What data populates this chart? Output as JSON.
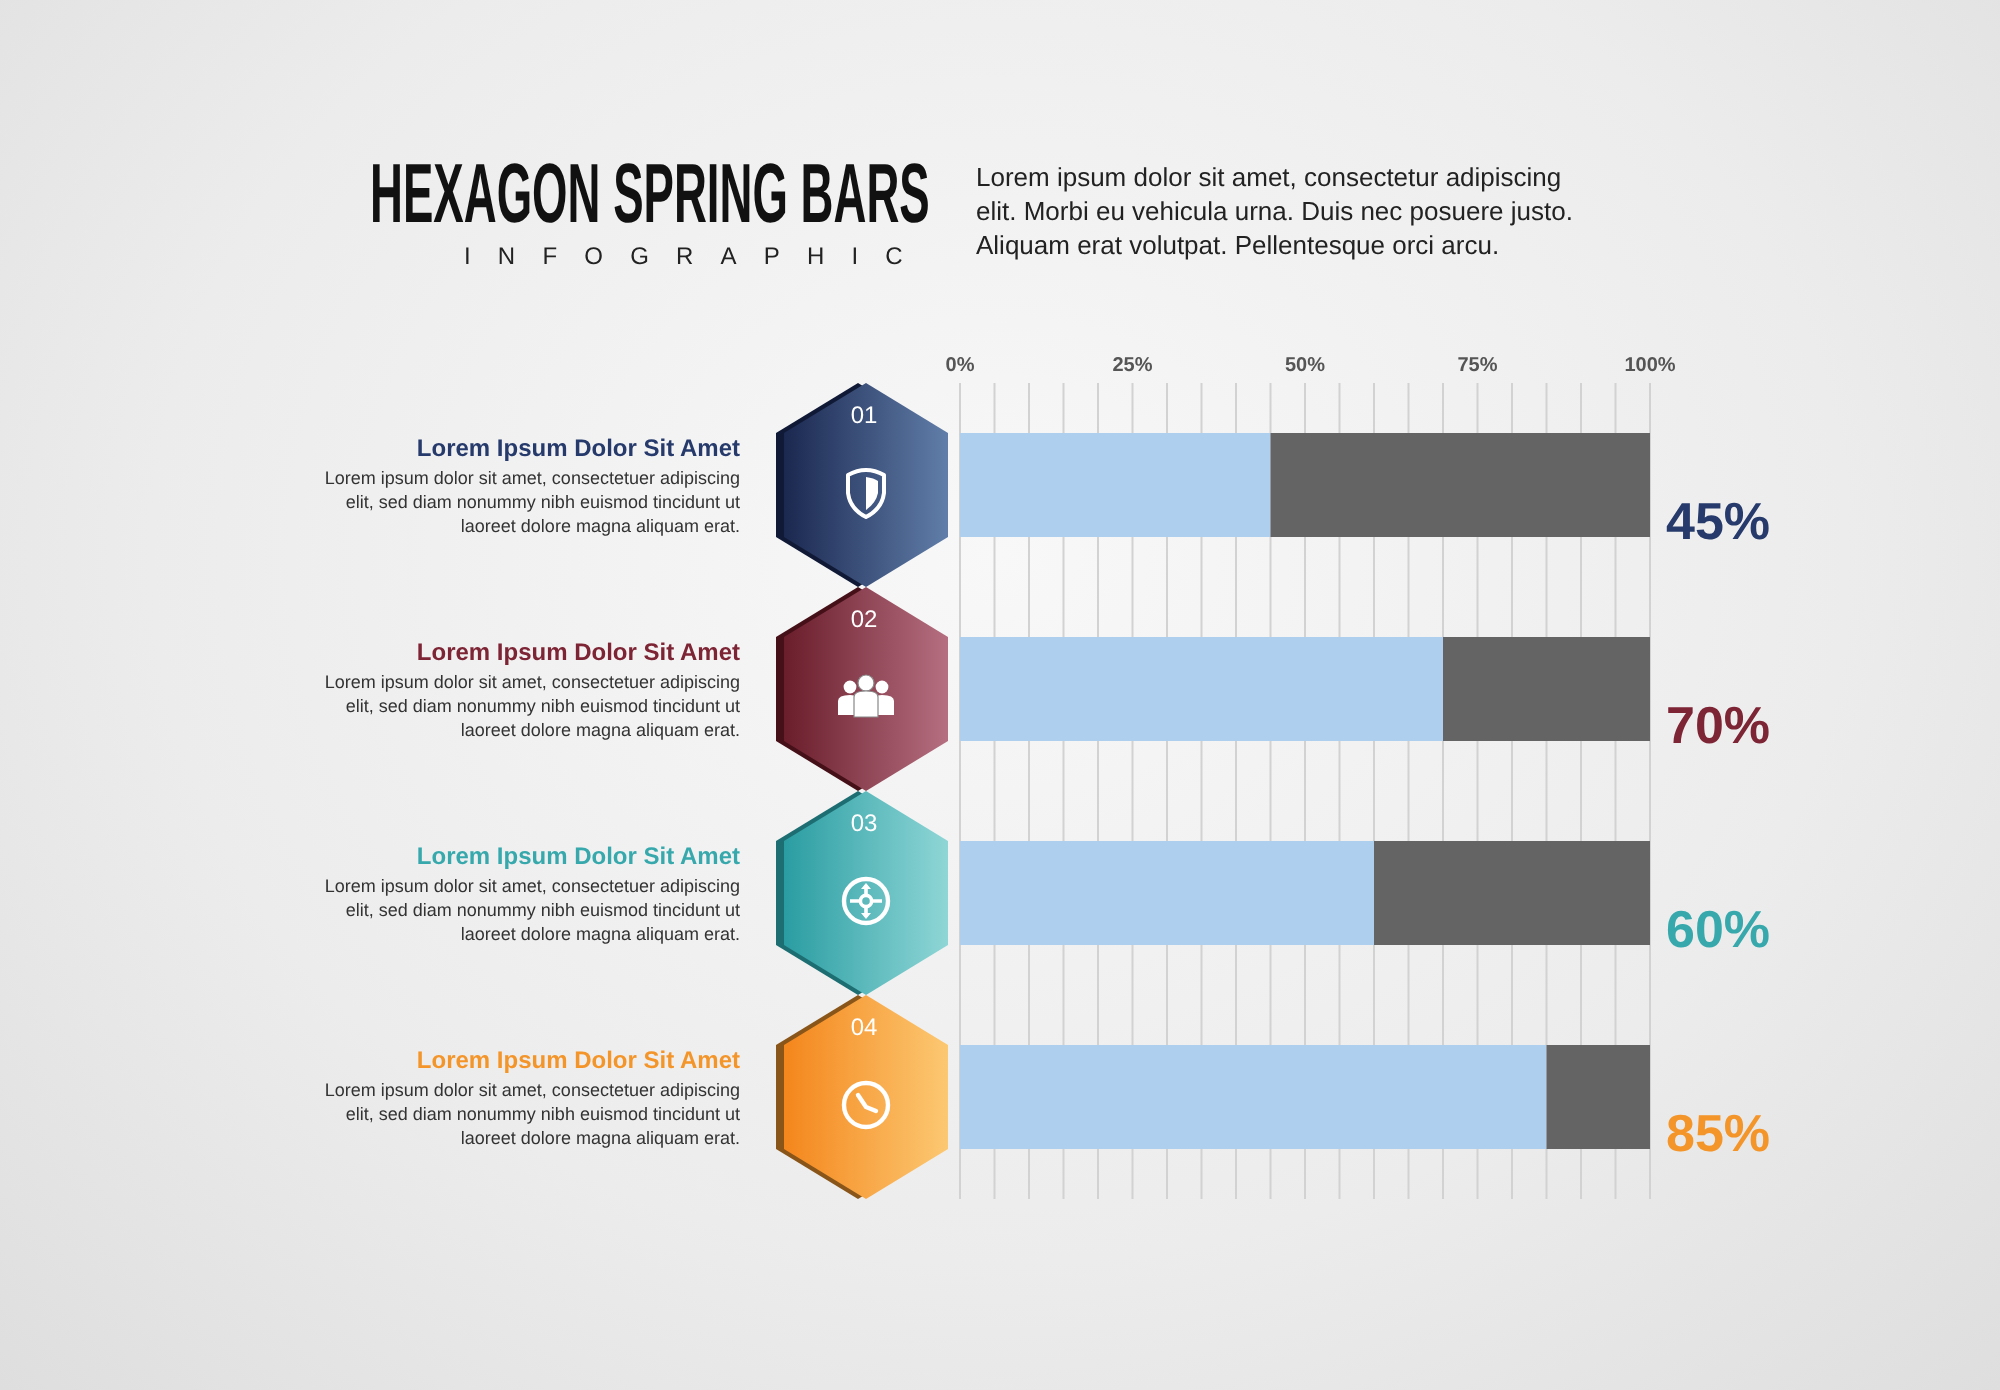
{
  "chart_data": {
    "type": "bar",
    "orientation": "horizontal",
    "stacked": true,
    "title": "HEXAGON SPRING BARS",
    "subtitle": "INFOGRAPHIC",
    "categories": [
      "01",
      "02",
      "03",
      "04"
    ],
    "series": [
      {
        "color": "#aed0ee",
        "values": [
          45,
          70,
          60,
          85
        ],
        "value_labels": [
          "45%",
          "70%",
          "60%",
          "85%"
        ]
      },
      {
        "color": "#646464",
        "values": [
          55,
          30,
          40,
          15
        ]
      }
    ],
    "xlim": [
      0,
      100
    ],
    "xticks": [
      {
        "value": 0,
        "label": "0%"
      },
      {
        "value": 5,
        "label": null
      },
      {
        "value": 10,
        "label": null
      },
      {
        "value": 15,
        "label": null
      },
      {
        "value": 20,
        "label": null
      },
      {
        "value": 25,
        "label": "25%"
      },
      {
        "value": 30,
        "label": null
      },
      {
        "value": 35,
        "label": null
      },
      {
        "value": 40,
        "label": null
      },
      {
        "value": 45,
        "label": null
      },
      {
        "value": 50,
        "label": "50%"
      },
      {
        "value": 55,
        "label": null
      },
      {
        "value": 60,
        "label": null
      },
      {
        "value": 65,
        "label": null
      },
      {
        "value": 70,
        "label": null
      },
      {
        "value": 75,
        "label": "75%"
      },
      {
        "value": 80,
        "label": null
      },
      {
        "value": 85,
        "label": null
      },
      {
        "value": 90,
        "label": null
      },
      {
        "value": 95,
        "label": null
      },
      {
        "value": 100,
        "label": "100%"
      }
    ],
    "grid": "x",
    "annotations": [
      "Lorem ipsum dolor sit amet, consectetur adipiscing elit. Morbi eu vehicula urna. Duis nec posuere justo. Aliquam erat volutpat. Pellentesque orci arcu.",
      "Lorem Ipsum Dolor Sit Amet",
      "Lorem ipsum dolor sit amet, consectetuer adipiscing elit, sed diam nonummy nibh euismod tincidunt ut laoreet dolore magna aliquam erat.",
      "Lorem Ipsum Dolor Sit Amet",
      "Lorem ipsum dolor sit amet, consectetuer adipiscing elit, sed diam nonummy nibh euismod tincidunt ut laoreet dolore magna aliquam erat.",
      "Lorem Ipsum Dolor Sit Amet",
      "Lorem ipsum dolor sit amet, consectetuer adipiscing elit, sed diam nonummy nibh euismod tincidunt ut laoreet dolore magna aliquam erat.",
      "Lorem Ipsum Dolor Sit Amet",
      "Lorem ipsum dolor sit amet, consectetuer adipiscing elit, sed diam nonummy nibh euismod tincidunt ut laoreet dolore magna aliquam erat."
    ]
  }
}
